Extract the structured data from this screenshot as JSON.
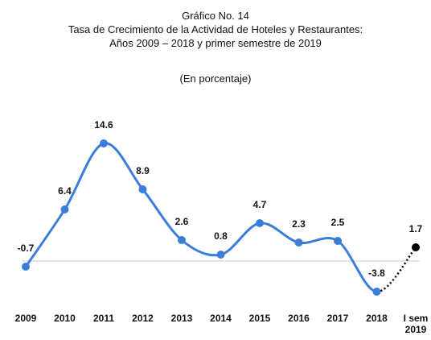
{
  "chart_data": {
    "type": "line",
    "title": "Gráfico No. 14",
    "subtitle": "Tasa de Crecimiento de la Actividad de Hoteles y Restaurantes:",
    "subtitle2": "Años 2009 – 2018 y primer semestre de 2019",
    "unit_note": "(En porcentaje)",
    "categories": [
      "2009",
      "2010",
      "2011",
      "2012",
      "2013",
      "2014",
      "2015",
      "2016",
      "2017",
      "2018",
      "I sem 2019"
    ],
    "values": [
      -0.7,
      6.4,
      14.6,
      8.9,
      2.6,
      0.8,
      4.7,
      2.3,
      2.5,
      -3.8,
      1.7
    ],
    "color": "#3b7dd8",
    "last_segment_color": "#000000",
    "last_segment_dotted": true,
    "zero_line": true
  }
}
